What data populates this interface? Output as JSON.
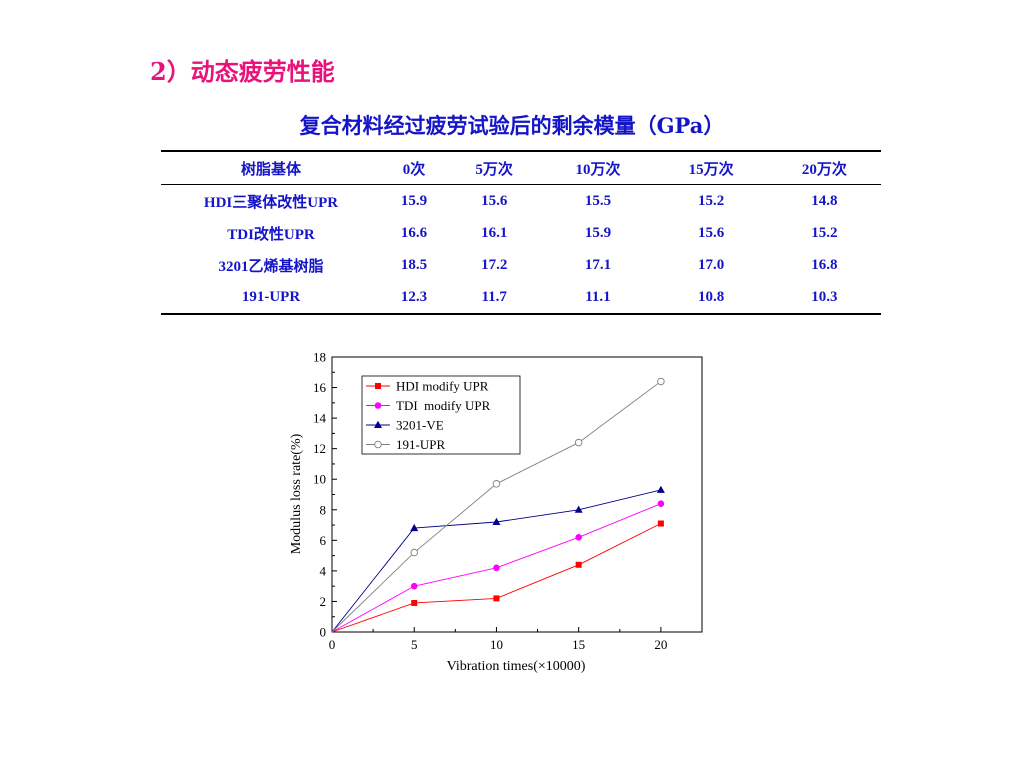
{
  "heading": "2）动态疲劳性能",
  "table": {
    "caption": "复合材料经过疲劳试验后的剩余模量（GPa）",
    "headers": [
      "树脂基体",
      "0次",
      "5万次",
      "10万次",
      "15万次",
      "20万次"
    ],
    "rows": [
      [
        "HDI三聚体改性UPR",
        "15.9",
        "15.6",
        "15.5",
        "15.2",
        "14.8"
      ],
      [
        "TDI改性UPR",
        "16.6",
        "16.1",
        "15.9",
        "15.6",
        "15.2"
      ],
      [
        "3201乙烯基树脂",
        "18.5",
        "17.2",
        "17.1",
        "17.0",
        "16.8"
      ],
      [
        "191-UPR",
        "12.3",
        "11.7",
        "11.1",
        "10.8",
        "10.3"
      ]
    ]
  },
  "chart_data": {
    "type": "line",
    "xlabel": "Vibration times(×10000)",
    "ylabel": "Modulus loss rate(%)",
    "xlim": [
      0,
      22.5
    ],
    "ylim": [
      0,
      18
    ],
    "xticks": [
      0,
      5,
      10,
      15,
      20
    ],
    "yticks": [
      0,
      2,
      4,
      6,
      8,
      10,
      12,
      14,
      16,
      18
    ],
    "legend_position": "top-left",
    "x": [
      0,
      5,
      10,
      15,
      20
    ],
    "series": [
      {
        "name": "HDI modify UPR",
        "values": [
          0,
          1.9,
          2.2,
          4.4,
          7.1
        ],
        "color": "#ff0000",
        "marker": "square"
      },
      {
        "name": "TDI  modify UPR",
        "values": [
          0,
          3.0,
          4.2,
          6.2,
          8.4
        ],
        "color": "#ff00ff",
        "marker": "circle"
      },
      {
        "name": "3201-VE",
        "values": [
          0,
          6.8,
          7.2,
          8.0,
          9.3
        ],
        "color": "#00008b",
        "marker": "triangle"
      },
      {
        "name": "191-UPR",
        "values": [
          0,
          5.2,
          9.7,
          12.4,
          16.4
        ],
        "color": "#808080",
        "marker": "open-circle"
      }
    ]
  }
}
